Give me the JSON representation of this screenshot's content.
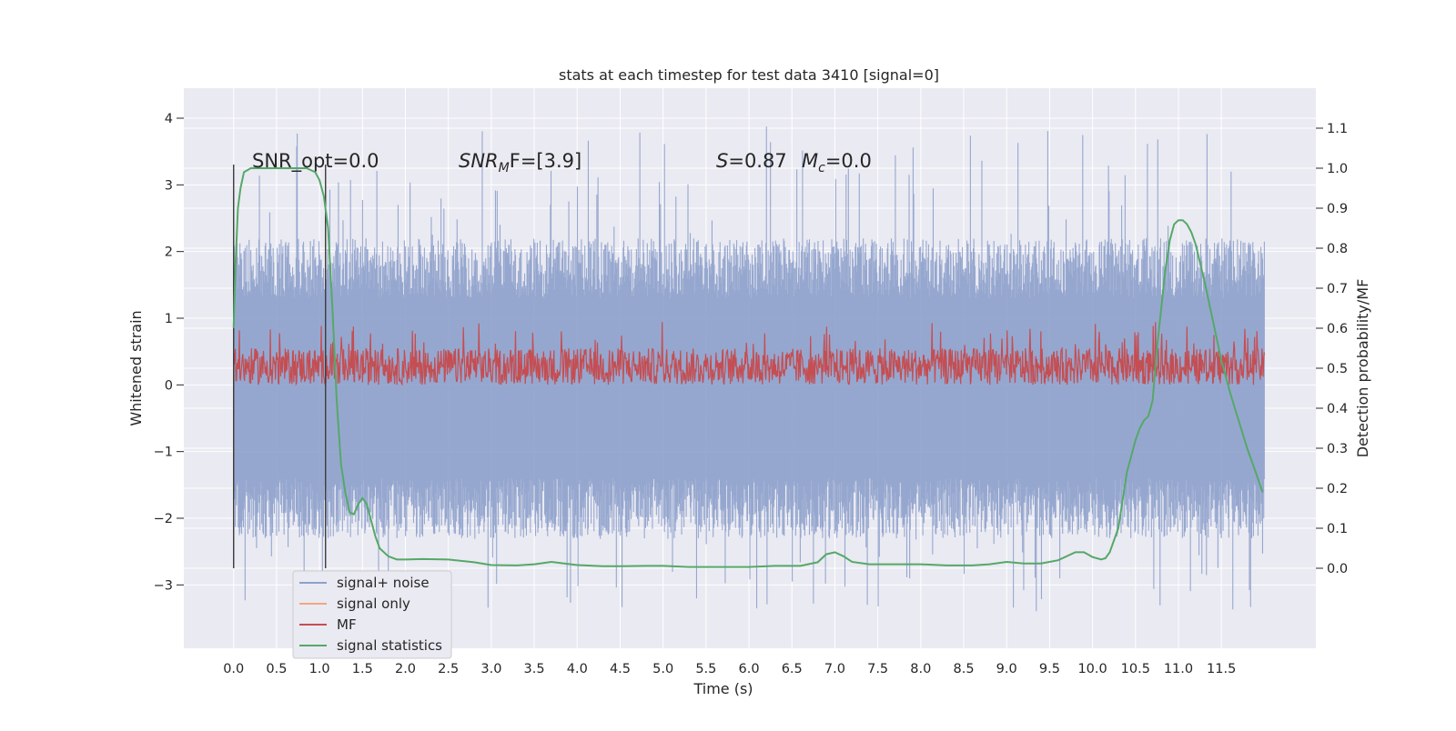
{
  "chart_data": {
    "type": "line",
    "title": "stats at each timestep for test data 3410 [signal=0]",
    "xlabel": "Time (s)",
    "ylabel_left": "Whitened strain",
    "ylabel_right": "Detection probability/MF",
    "xlim": [
      -0.58,
      12.6
    ],
    "ylim_left": [
      -3.95,
      4.45
    ],
    "ylim_right": [
      -0.2,
      1.2
    ],
    "xticks": [
      0.0,
      0.5,
      1.0,
      1.5,
      2.0,
      2.5,
      3.0,
      3.5,
      4.0,
      4.5,
      5.0,
      5.5,
      6.0,
      6.5,
      7.0,
      7.5,
      8.0,
      8.5,
      9.0,
      9.5,
      10.0,
      10.5,
      11.0,
      11.5
    ],
    "xtick_labels": [
      "0.0",
      "0.5",
      "1.0",
      "1.5",
      "2.0",
      "2.5",
      "3.0",
      "3.5",
      "4.0",
      "4.5",
      "5.0",
      "5.5",
      "6.0",
      "6.5",
      "7.0",
      "7.5",
      "8.0",
      "8.5",
      "9.0",
      "9.5",
      "10.0",
      "10.5",
      "11.0",
      "11.5"
    ],
    "yticks_left": [
      -3,
      -2,
      -1,
      0,
      1,
      2,
      3,
      4
    ],
    "ytick_labels_left": [
      "−3",
      "−2",
      "−1",
      "0",
      "1",
      "2",
      "3",
      "4"
    ],
    "yticks_right": [
      0.0,
      0.1,
      0.2,
      0.3,
      0.4,
      0.5,
      0.6,
      0.7,
      0.8,
      0.9,
      1.0,
      1.1
    ],
    "ytick_labels_right": [
      "0.0",
      "0.1",
      "0.2",
      "0.3",
      "0.4",
      "0.5",
      "0.6",
      "0.7",
      "0.8",
      "0.9",
      "1.0",
      "1.1"
    ],
    "grid": true,
    "legend_position": "lower-left",
    "legend": [
      {
        "label": "signal+ noise",
        "color": "#8da0cb"
      },
      {
        "label": "signal only",
        "color": "#f4a582"
      },
      {
        "label": "MF",
        "color": "#c44e52"
      },
      {
        "label": "signal statistics",
        "color": "#55a868"
      }
    ],
    "annotations": {
      "snr_opt": "SNR_opt=0.0",
      "snr_mf_main": "SNR",
      "snr_mf_sub": "M",
      "snr_mf_rest": "F=[3.9]",
      "s_main": "S",
      "s_rest": "=0.87",
      "mc_main": "M",
      "mc_sub": "c",
      "mc_rest": "=0.0"
    },
    "vlines_x": [
      0.0,
      1.07
    ],
    "noise": {
      "x_range": [
        0.0,
        12.0
      ],
      "center": -0.05,
      "typical_range": [
        -1.6,
        1.5
      ],
      "extreme_range": [
        -3.4,
        4.1
      ],
      "samples": 1800
    },
    "mf": {
      "x_range": [
        0.0,
        12.0
      ],
      "typical_range": [
        0.0,
        0.55
      ],
      "extreme_max": 0.95,
      "samples": 1800
    },
    "series": [
      {
        "name": "signal statistics",
        "axis": "right",
        "x": [
          0.0,
          0.02,
          0.05,
          0.08,
          0.12,
          0.2,
          0.3,
          0.5,
          0.7,
          0.85,
          0.95,
          1.0,
          1.05,
          1.1,
          1.15,
          1.2,
          1.25,
          1.3,
          1.35,
          1.4,
          1.45,
          1.5,
          1.55,
          1.6,
          1.65,
          1.7,
          1.8,
          1.9,
          2.0,
          2.2,
          2.5,
          2.8,
          3.0,
          3.3,
          3.5,
          3.7,
          4.0,
          4.3,
          4.5,
          4.8,
          5.0,
          5.3,
          5.5,
          5.8,
          6.0,
          6.3,
          6.6,
          6.8,
          6.9,
          7.0,
          7.1,
          7.2,
          7.4,
          7.6,
          8.0,
          8.3,
          8.6,
          8.8,
          9.0,
          9.2,
          9.4,
          9.6,
          9.8,
          9.9,
          10.0,
          10.1,
          10.15,
          10.2,
          10.3,
          10.4,
          10.5,
          10.55,
          10.6,
          10.65,
          10.7,
          10.75,
          10.8,
          10.85,
          10.9,
          10.95,
          11.0,
          11.05,
          11.1,
          11.15,
          11.2,
          11.3,
          11.4,
          11.5,
          11.6,
          11.7,
          11.8,
          11.9,
          11.98
        ],
        "y": [
          0.6,
          0.75,
          0.9,
          0.95,
          0.99,
          1.0,
          1.0,
          1.0,
          1.0,
          1.0,
          0.99,
          0.97,
          0.93,
          0.85,
          0.65,
          0.42,
          0.26,
          0.19,
          0.14,
          0.135,
          0.16,
          0.175,
          0.16,
          0.12,
          0.08,
          0.05,
          0.03,
          0.022,
          0.022,
          0.023,
          0.022,
          0.015,
          0.008,
          0.007,
          0.01,
          0.016,
          0.008,
          0.005,
          0.005,
          0.006,
          0.006,
          0.003,
          0.003,
          0.003,
          0.003,
          0.006,
          0.006,
          0.015,
          0.035,
          0.04,
          0.03,
          0.016,
          0.01,
          0.01,
          0.01,
          0.007,
          0.007,
          0.01,
          0.016,
          0.012,
          0.012,
          0.02,
          0.04,
          0.04,
          0.028,
          0.022,
          0.025,
          0.04,
          0.1,
          0.24,
          0.32,
          0.35,
          0.37,
          0.38,
          0.42,
          0.55,
          0.65,
          0.75,
          0.82,
          0.86,
          0.87,
          0.87,
          0.86,
          0.84,
          0.81,
          0.72,
          0.62,
          0.52,
          0.44,
          0.37,
          0.3,
          0.24,
          0.19
        ]
      }
    ]
  }
}
